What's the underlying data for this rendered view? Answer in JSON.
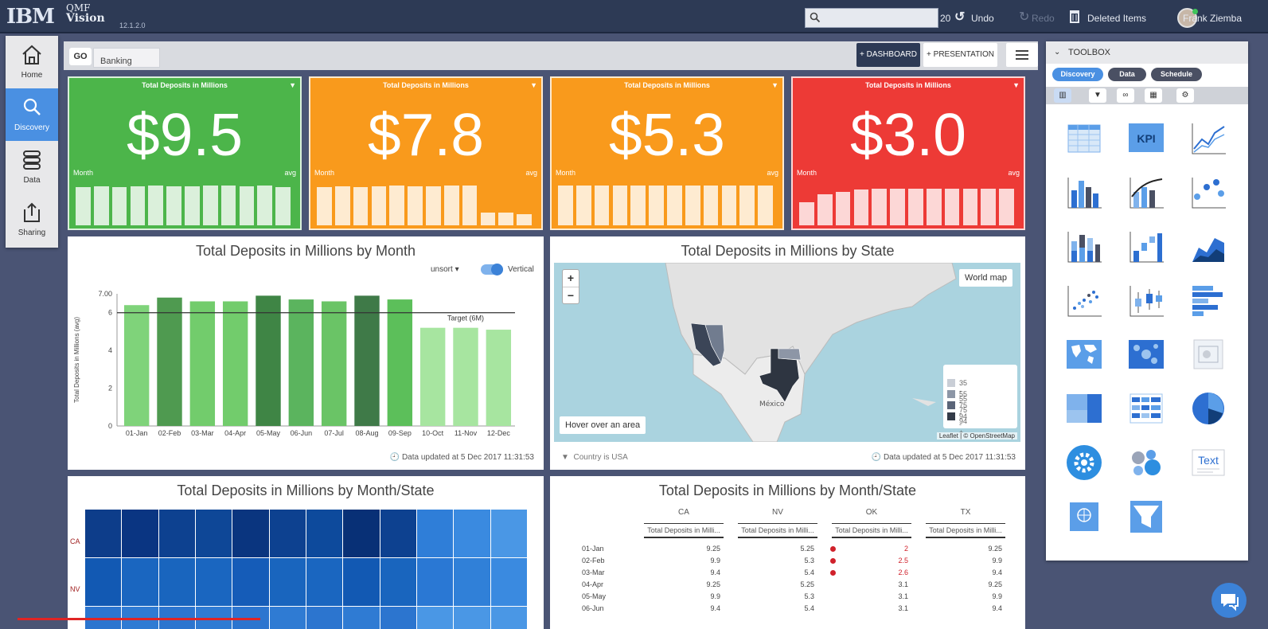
{
  "header": {
    "brand": "IBM",
    "product_line1": "QMF",
    "product_line2": "Vision",
    "version": "12.1.2.0",
    "undo_count": "20",
    "undo_label": "Undo",
    "redo_label": "Redo",
    "deleted_label": "Deleted Items",
    "user_name": "Frank Ziemba"
  },
  "nav": {
    "items": [
      {
        "label": "Home",
        "icon": "home-icon"
      },
      {
        "label": "Discovery",
        "icon": "search-icon"
      },
      {
        "label": "Data",
        "icon": "database-icon"
      },
      {
        "label": "Sharing",
        "icon": "share-icon"
      }
    ]
  },
  "tabs": {
    "link_label": "GO",
    "active_tab": "Banking",
    "dashboard_btn": "DASHBOARD",
    "presentation_btn": "PRESENTATION"
  },
  "kpis": [
    {
      "title": "Total Deposits in Millions",
      "value": "$9.5",
      "left": "Month",
      "right": "avg",
      "color": "#4cb54a",
      "bars": [
        0.83,
        0.85,
        0.83,
        0.84,
        0.87,
        0.85,
        0.84,
        0.87,
        0.86,
        0.85,
        0.86,
        0.83
      ]
    },
    {
      "title": "Total Deposits in Millions",
      "value": "$7.8",
      "left": "Month",
      "right": "avg",
      "color": "#f99a1c",
      "bars": [
        0.83,
        0.85,
        0.83,
        0.84,
        0.87,
        0.85,
        0.84,
        0.87,
        0.86,
        0.27,
        0.27,
        0.24
      ]
    },
    {
      "title": "Total Deposits in Millions",
      "value": "$5.3",
      "left": "Month",
      "right": "avg",
      "color": "#f99a1c",
      "bars": [
        0.87,
        0.87,
        0.86,
        0.86,
        0.87,
        0.86,
        0.86,
        0.86,
        0.86,
        0.86,
        0.86,
        0.86
      ]
    },
    {
      "title": "Total Deposits in Millions",
      "value": "$3.0",
      "left": "Month",
      "right": "avg",
      "color": "#ed3a36",
      "bars": [
        0.5,
        0.67,
        0.73,
        0.77,
        0.8,
        0.8,
        0.8,
        0.8,
        0.8,
        0.8,
        0.8,
        0.8
      ]
    }
  ],
  "bar_panel": {
    "title": "Total Deposits in Millions by Month",
    "sort_label": "unsort",
    "orient_label": "Vertical",
    "footer": "Data updated at 5 Dec 2017 11:31:53"
  },
  "chart_data": {
    "type": "bar",
    "title": "Total Deposits in Millions by Month",
    "xlabel": "",
    "ylabel": "Total Deposits in Millions (avg)",
    "ylim": [
      0,
      7
    ],
    "yticks": [
      "0",
      "2",
      "4",
      "6",
      "7.00"
    ],
    "categories": [
      "01-Jan",
      "02-Feb",
      "03-Mar",
      "04-Apr",
      "05-May",
      "06-Jun",
      "07-Jul",
      "08-Aug",
      "09-Sep",
      "10-Oct",
      "11-Nov",
      "12-Dec"
    ],
    "values": [
      6.4,
      6.8,
      6.6,
      6.6,
      6.9,
      6.7,
      6.6,
      6.9,
      6.7,
      5.2,
      5.2,
      5.1
    ],
    "bar_colors": [
      "#7fd37a",
      "#4f9a50",
      "#72cc6c",
      "#72cc6c",
      "#3f8545",
      "#5bb45e",
      "#6ac466",
      "#3f7a48",
      "#5cbf5a",
      "#a7e5a0",
      "#a7e5a0",
      "#a7e5a0"
    ],
    "target": {
      "value": 6.0,
      "label": "Target (6M)"
    }
  },
  "map_panel": {
    "title": "Total Deposits in Millions by State",
    "world_map_btn": "World map",
    "hover_hint": "Hover over an area",
    "legend": [
      "35 - 55",
      "55 - 75",
      "75 - 94",
      "94 - +"
    ],
    "legend_colors": [
      "#c9ced6",
      "#8c96a6",
      "#5a6578",
      "#333b48"
    ],
    "attribution": "Leaflet | © OpenStreetMap",
    "country_filter": "Country is USA",
    "mexico_label": "México",
    "footer": "Data updated at 5 Dec 2017 11:31:53"
  },
  "heatmap_panel": {
    "title": "Total Deposits in Millions by Month/State",
    "row_labels": [
      "CA",
      "NV"
    ]
  },
  "table_panel": {
    "title": "Total Deposits in Millions by Month/State",
    "columns": [
      "CA",
      "NV",
      "OK",
      "TX"
    ],
    "subheader": "Total Deposits in Milli...",
    "rows": [
      {
        "label": "01-Jan",
        "vals": [
          "9.25",
          "5.25",
          "2",
          "9.25"
        ],
        "flag": true
      },
      {
        "label": "02-Feb",
        "vals": [
          "9.9",
          "5.3",
          "2.5",
          "9.9"
        ],
        "flag": true
      },
      {
        "label": "03-Mar",
        "vals": [
          "9.4",
          "5.4",
          "2.6",
          "9.4"
        ],
        "flag": true
      },
      {
        "label": "04-Apr",
        "vals": [
          "9.25",
          "5.25",
          "3.1",
          "9.25"
        ],
        "flag": false
      },
      {
        "label": "05-May",
        "vals": [
          "9.9",
          "5.3",
          "3.1",
          "9.9"
        ],
        "flag": false
      },
      {
        "label": "06-Jun",
        "vals": [
          "9.4",
          "5.4",
          "3.1",
          "9.4"
        ],
        "flag": false
      }
    ]
  },
  "toolbox": {
    "title": "TOOLBOX",
    "tabs": [
      "Discovery",
      "Data",
      "Schedule"
    ],
    "kpi_label": "KPI",
    "text_label": "Text"
  }
}
